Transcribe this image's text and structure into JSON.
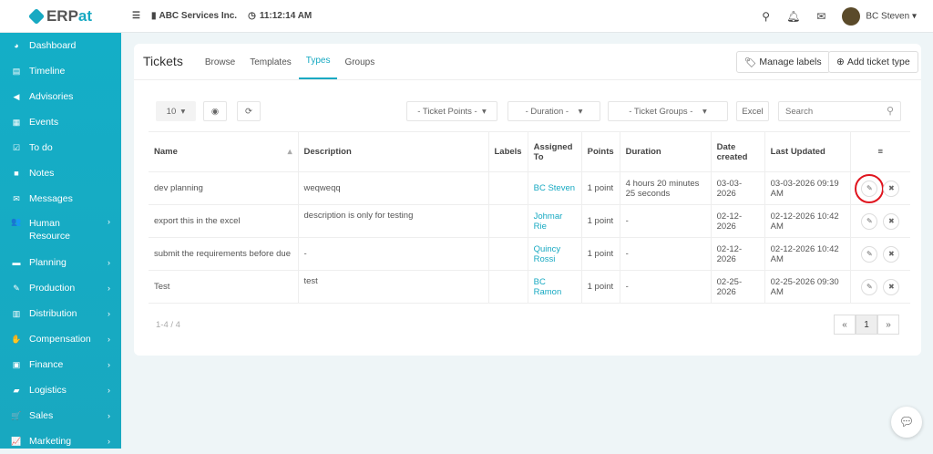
{
  "header": {
    "logo": "ERPat",
    "logo_suffix": "at",
    "logo_prefix": "ERP",
    "company": "ABC Services Inc.",
    "time": "11:12:14 AM",
    "user": "BC Steven"
  },
  "sidebar": {
    "items": [
      {
        "label": "Dashboard",
        "icon": "dashboard-icon",
        "glyph": "◕"
      },
      {
        "label": "Timeline",
        "icon": "timeline-icon",
        "glyph": "▤"
      },
      {
        "label": "Advisories",
        "icon": "megaphone-icon",
        "glyph": "◀"
      },
      {
        "label": "Events",
        "icon": "calendar-icon",
        "glyph": "▦"
      },
      {
        "label": "To do",
        "icon": "checkbox-icon",
        "glyph": "☑"
      },
      {
        "label": "Notes",
        "icon": "note-icon",
        "glyph": "■"
      },
      {
        "label": "Messages",
        "icon": "envelope-icon",
        "glyph": "✉"
      },
      {
        "label": "Human Resource",
        "icon": "users-icon",
        "glyph": "👥",
        "sub": true
      },
      {
        "label": "Planning",
        "icon": "briefcase-icon",
        "glyph": "▬",
        "sub": true
      },
      {
        "label": "Production",
        "icon": "gavel-icon",
        "glyph": "✎",
        "sub": true
      },
      {
        "label": "Distribution",
        "icon": "bank-icon",
        "glyph": "▥",
        "sub": true
      },
      {
        "label": "Compensation",
        "icon": "handshake-icon",
        "glyph": "✋",
        "sub": true
      },
      {
        "label": "Finance",
        "icon": "money-icon",
        "glyph": "▣",
        "sub": true
      },
      {
        "label": "Logistics",
        "icon": "truck-icon",
        "glyph": "▰",
        "sub": true
      },
      {
        "label": "Sales",
        "icon": "cart-icon",
        "glyph": "🛒",
        "sub": true
      },
      {
        "label": "Marketing",
        "icon": "chart-line-icon",
        "glyph": "📈",
        "sub": true
      }
    ]
  },
  "main": {
    "title": "Tickets",
    "tabs": [
      {
        "label": "Browse"
      },
      {
        "label": "Templates"
      },
      {
        "label": "Types",
        "active": true
      },
      {
        "label": "Groups"
      }
    ],
    "manage_labels": "Manage labels",
    "add_ticket_type": "Add ticket type",
    "page_size": "10",
    "filters": {
      "points": "- Ticket Points -",
      "duration": "- Duration -",
      "groups": "- Ticket Groups -"
    },
    "excel": "Excel",
    "search_placeholder": "Search",
    "columns": [
      "Name",
      "Description",
      "Labels",
      "Assigned To",
      "Points",
      "Duration",
      "Date created",
      "Last Updated"
    ],
    "rows": [
      {
        "name": "dev planning",
        "description": "weqweqq",
        "labels": "",
        "assigned": "BC Steven",
        "points": "1 point",
        "duration": "4 hours 20 minutes 25 seconds",
        "created": "03-03-2026",
        "updated": "03-03-2026 09:19 AM"
      },
      {
        "name": "export this in the excel",
        "description": "description is only for testing",
        "labels": "",
        "assigned": "Johmar Rie",
        "points": "1 point",
        "duration": "-",
        "created": "02-12-2026",
        "updated": "02-12-2026 10:42 AM"
      },
      {
        "name": "submit the requirements before due",
        "description": "-",
        "labels": "",
        "assigned": "Quincy Rossi",
        "points": "1 point",
        "duration": "-",
        "created": "02-12-2026",
        "updated": "02-12-2026 10:42 AM"
      },
      {
        "name": "Test",
        "description": "test",
        "labels": "",
        "assigned": "BC Ramon",
        "points": "1 point",
        "duration": "-",
        "created": "02-25-2026",
        "updated": "02-25-2026 09:30 AM"
      }
    ],
    "count": "1-4 / 4",
    "pager": {
      "prev": "«",
      "current": "1",
      "next": "»"
    }
  },
  "colors": {
    "accent": "#17a9c2",
    "highlight": "#e0141e"
  }
}
